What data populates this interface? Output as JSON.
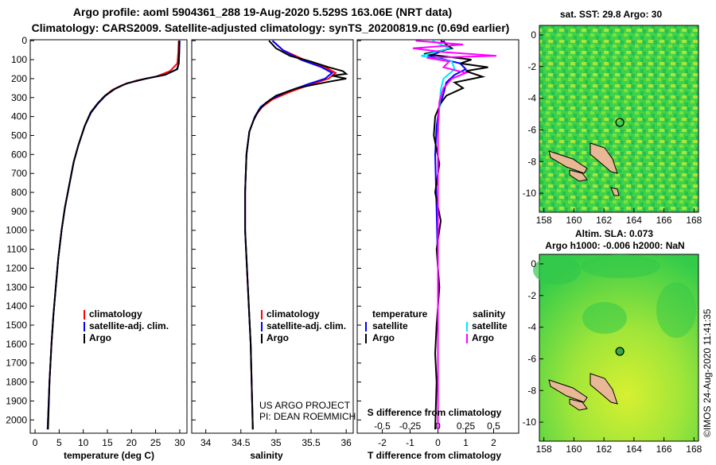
{
  "header": {
    "line1": "Argo profile: aoml 5904361_288 19-Aug-2020 5.529S 163.06E (NRT data)",
    "line2": "Climatology: CARS2009. Satellite-adjusted climatology: synTS_20200819.nc (0.69d earlier)"
  },
  "colors": {
    "climatology": "#ff0000",
    "satellite": "#0000ff",
    "argo": "#000000",
    "s_sat": "#00e5ff",
    "s_argo": "#ff00ff"
  },
  "chart_data": [
    {
      "type": "line",
      "id": "temperature",
      "xlabel": "temperature (deg C)",
      "xlim": [
        -1,
        31.5
      ],
      "xticks": [
        0,
        5,
        10,
        15,
        20,
        25,
        30
      ],
      "ylim": [
        2070,
        -5
      ],
      "yticks": [
        0,
        100,
        200,
        300,
        400,
        500,
        600,
        700,
        800,
        900,
        1000,
        1100,
        1200,
        1300,
        1400,
        1500,
        1600,
        1700,
        1800,
        1900,
        2000
      ],
      "legend": [
        "climatology",
        "satellite-adj. clim.",
        "Argo"
      ],
      "series": [
        {
          "name": "climatology",
          "color": "#ff0000",
          "points": [
            [
              29.8,
              0
            ],
            [
              29.7,
              60
            ],
            [
              29.5,
              120
            ],
            [
              28,
              160
            ],
            [
              25,
              190
            ],
            [
              21,
              210
            ],
            [
              18,
              235
            ],
            [
              16,
              260
            ],
            [
              14.5,
              290
            ],
            [
              13,
              330
            ],
            [
              11.5,
              380
            ],
            [
              10.3,
              450
            ],
            [
              9,
              550
            ],
            [
              8,
              640
            ],
            [
              7.1,
              760
            ],
            [
              6.2,
              880
            ],
            [
              5.5,
              1000
            ],
            [
              4.8,
              1150
            ],
            [
              4.3,
              1300
            ],
            [
              3.8,
              1450
            ],
            [
              3.4,
              1600
            ],
            [
              3.0,
              1800
            ],
            [
              2.6,
              2050
            ]
          ]
        },
        {
          "name": "satellite",
          "color": "#0000ff",
          "points": [
            [
              30.0,
              0
            ],
            [
              29.9,
              60
            ],
            [
              29.8,
              120
            ],
            [
              29.4,
              150
            ],
            [
              27,
              180
            ],
            [
              23,
              200
            ],
            [
              19,
              225
            ],
            [
              16.5,
              255
            ],
            [
              14.6,
              290
            ],
            [
              13.1,
              330
            ],
            [
              11.6,
              380
            ],
            [
              10.3,
              450
            ],
            [
              9,
              550
            ],
            [
              8,
              640
            ],
            [
              7.1,
              760
            ],
            [
              6.2,
              880
            ],
            [
              5.5,
              1000
            ],
            [
              4.8,
              1150
            ],
            [
              4.3,
              1300
            ],
            [
              3.8,
              1450
            ],
            [
              3.4,
              1600
            ],
            [
              3.0,
              1800
            ],
            [
              2.6,
              2050
            ]
          ]
        },
        {
          "name": "Argo",
          "color": "#000000",
          "points": [
            [
              29.9,
              0
            ],
            [
              29.9,
              60
            ],
            [
              29.8,
              120
            ],
            [
              29.5,
              150
            ],
            [
              27,
              180
            ],
            [
              23,
              200
            ],
            [
              19,
              225
            ],
            [
              16.5,
              255
            ],
            [
              14.5,
              290
            ],
            [
              13,
              330
            ],
            [
              11.5,
              380
            ],
            [
              10.3,
              450
            ],
            [
              9,
              550
            ],
            [
              8,
              640
            ],
            [
              7.1,
              760
            ],
            [
              6.2,
              880
            ],
            [
              5.5,
              1000
            ],
            [
              4.8,
              1150
            ],
            [
              4.3,
              1300
            ],
            [
              3.8,
              1450
            ],
            [
              3.4,
              1600
            ],
            [
              3.0,
              1800
            ],
            [
              2.7,
              2050
            ]
          ]
        }
      ]
    },
    {
      "type": "line",
      "id": "salinity",
      "xlabel": "salinity",
      "xlim": [
        33.8,
        36.1
      ],
      "xticks": [
        34,
        34.5,
        35,
        35.5,
        36
      ],
      "xtick_labels": [
        "34",
        "34.5",
        "35",
        "35.5",
        "36"
      ],
      "ylim": [
        2070,
        -5
      ],
      "legend": [
        "climatology",
        "satellite-adj. clim.",
        "Argo"
      ],
      "annotation": [
        "US ARGO PROJECT",
        "PI: DEAN ROEMMICH"
      ],
      "series": [
        {
          "name": "climatology",
          "color": "#ff0000",
          "points": [
            [
              34.95,
              0
            ],
            [
              35.1,
              50
            ],
            [
              35.4,
              100
            ],
            [
              35.7,
              140
            ],
            [
              35.85,
              170
            ],
            [
              35.75,
              200
            ],
            [
              35.5,
              230
            ],
            [
              35.2,
              270
            ],
            [
              34.95,
              310
            ],
            [
              34.8,
              350
            ],
            [
              34.7,
              400
            ],
            [
              34.62,
              480
            ],
            [
              34.58,
              600
            ],
            [
              34.56,
              800
            ],
            [
              34.56,
              1000
            ],
            [
              34.6,
              1300
            ],
            [
              34.64,
              1600
            ],
            [
              34.66,
              1900
            ],
            [
              34.67,
              2050
            ]
          ]
        },
        {
          "name": "satellite",
          "color": "#0000ff",
          "points": [
            [
              34.95,
              0
            ],
            [
              35.1,
              50
            ],
            [
              35.35,
              100
            ],
            [
              35.65,
              140
            ],
            [
              35.8,
              170
            ],
            [
              35.7,
              200
            ],
            [
              35.45,
              230
            ],
            [
              35.15,
              270
            ],
            [
              34.92,
              310
            ],
            [
              34.78,
              350
            ],
            [
              34.7,
              400
            ],
            [
              34.62,
              480
            ],
            [
              34.58,
              600
            ],
            [
              34.56,
              800
            ],
            [
              34.56,
              1000
            ],
            [
              34.6,
              1300
            ],
            [
              34.64,
              1600
            ],
            [
              34.66,
              1900
            ],
            [
              34.67,
              2050
            ]
          ]
        },
        {
          "name": "Argo",
          "color": "#000000",
          "points": [
            [
              34.9,
              0
            ],
            [
              35.0,
              40
            ],
            [
              35.2,
              80
            ],
            [
              35.5,
              110
            ],
            [
              35.75,
              140
            ],
            [
              35.95,
              160
            ],
            [
              36.0,
              175
            ],
            [
              35.8,
              185
            ],
            [
              36.0,
              200
            ],
            [
              35.7,
              220
            ],
            [
              35.3,
              250
            ],
            [
              35.0,
              290
            ],
            [
              34.85,
              330
            ],
            [
              34.75,
              370
            ],
            [
              34.68,
              420
            ],
            [
              34.62,
              480
            ],
            [
              34.58,
              600
            ],
            [
              34.56,
              800
            ],
            [
              34.56,
              1000
            ],
            [
              34.6,
              1300
            ],
            [
              34.64,
              1600
            ],
            [
              34.66,
              1900
            ],
            [
              34.67,
              2050
            ]
          ]
        }
      ]
    },
    {
      "type": "line",
      "id": "difference",
      "xlabel": "T difference from climatology",
      "xlim": [
        -2.9,
        2.9
      ],
      "xticks": [
        -2,
        -1,
        0,
        1,
        2
      ],
      "ylim": [
        2070,
        -5
      ],
      "secondary_axis": {
        "label": "S difference from climatology",
        "ticks": [
          -0.5,
          -0.25,
          0,
          0.25,
          0.5
        ],
        "tick_labels": [
          "-0.5",
          "-0.25",
          "0",
          "0.25",
          "0.5"
        ],
        "scale": 4
      },
      "legend_left": {
        "title": "temperature",
        "items": [
          "satellite",
          "Argo"
        ]
      },
      "legend_right": {
        "title": "salinity",
        "items": [
          "satellite",
          "Argo"
        ]
      },
      "series": [
        {
          "name": "T satellite",
          "color": "#0000ff",
          "points": [
            [
              0.2,
              0
            ],
            [
              0.4,
              40
            ],
            [
              -0.3,
              80
            ],
            [
              0.8,
              120
            ],
            [
              1.0,
              150
            ],
            [
              0.6,
              180
            ],
            [
              0.3,
              220
            ],
            [
              0.2,
              280
            ],
            [
              0.05,
              350
            ],
            [
              -0.05,
              450
            ],
            [
              -0.1,
              600
            ],
            [
              -0.05,
              900
            ],
            [
              0,
              1200
            ],
            [
              0,
              1600
            ],
            [
              0,
              2050
            ]
          ]
        },
        {
          "name": "T Argo",
          "color": "#000000",
          "points": [
            [
              0.1,
              0
            ],
            [
              0.5,
              40
            ],
            [
              -0.5,
              70
            ],
            [
              1.2,
              100
            ],
            [
              0.8,
              120
            ],
            [
              1.8,
              140
            ],
            [
              1.0,
              160
            ],
            [
              1.6,
              190
            ],
            [
              0.6,
              220
            ],
            [
              0.9,
              250
            ],
            [
              0.3,
              290
            ],
            [
              0.1,
              330
            ],
            [
              -0.1,
              400
            ],
            [
              -0.15,
              500
            ],
            [
              0.05,
              650
            ],
            [
              -0.1,
              800
            ],
            [
              0.1,
              950
            ],
            [
              -0.05,
              1100
            ],
            [
              0.05,
              1300
            ],
            [
              -0.05,
              1500
            ],
            [
              -0.1,
              1650
            ],
            [
              -0.05,
              1800
            ],
            [
              -0.1,
              2050
            ]
          ]
        },
        {
          "name": "S satellite",
          "color": "#00e5ff",
          "points": [
            [
              -0.2,
              0
            ],
            [
              0.4,
              40
            ],
            [
              -0.6,
              80
            ],
            [
              0.5,
              110
            ],
            [
              0.6,
              150
            ],
            [
              0.2,
              200
            ],
            [
              0.1,
              260
            ],
            [
              0.05,
              350
            ],
            [
              0,
              500
            ],
            [
              0,
              900
            ],
            [
              0,
              1500
            ],
            [
              0,
              2050
            ]
          ]
        },
        {
          "name": "S Argo",
          "color": "#ff00ff",
          "points": [
            [
              -0.8,
              0
            ],
            [
              0.9,
              20
            ],
            [
              -0.9,
              40
            ],
            [
              0.2,
              60
            ],
            [
              2.1,
              80
            ],
            [
              -0.4,
              90
            ],
            [
              0.4,
              110
            ],
            [
              0.2,
              140
            ],
            [
              1.0,
              170
            ],
            [
              0.5,
              200
            ],
            [
              0.2,
              250
            ],
            [
              0.05,
              320
            ],
            [
              0,
              450
            ],
            [
              0,
              900
            ],
            [
              0,
              1500
            ],
            [
              0,
              2050
            ]
          ]
        }
      ]
    },
    {
      "type": "heatmap",
      "id": "sst_map",
      "title": "sat. SST: 29.8 Argo: 30",
      "xticks": [
        158,
        160,
        162,
        164,
        166,
        168
      ],
      "yticks": [
        0,
        -2,
        -4,
        -6,
        -8,
        -10
      ],
      "xlim": [
        157.7,
        168.3
      ],
      "ylim": [
        -11.2,
        0.6
      ],
      "marker": [
        163.06,
        -5.529
      ]
    },
    {
      "type": "heatmap",
      "id": "sla_map",
      "title": "Altim. SLA: 0.073",
      "subtitle": "Argo h1000: -0.006 h2000: NaN",
      "xticks": [
        158,
        160,
        162,
        164,
        166,
        168
      ],
      "yticks": [
        0,
        -2,
        -4,
        -6,
        -8,
        -10
      ],
      "xlim": [
        157.7,
        168.3
      ],
      "ylim": [
        -11.2,
        0.6
      ],
      "marker": [
        163.06,
        -5.529
      ]
    }
  ],
  "footer": {
    "stamp": "©IMOS 24-Aug-2020 11:41:35"
  }
}
